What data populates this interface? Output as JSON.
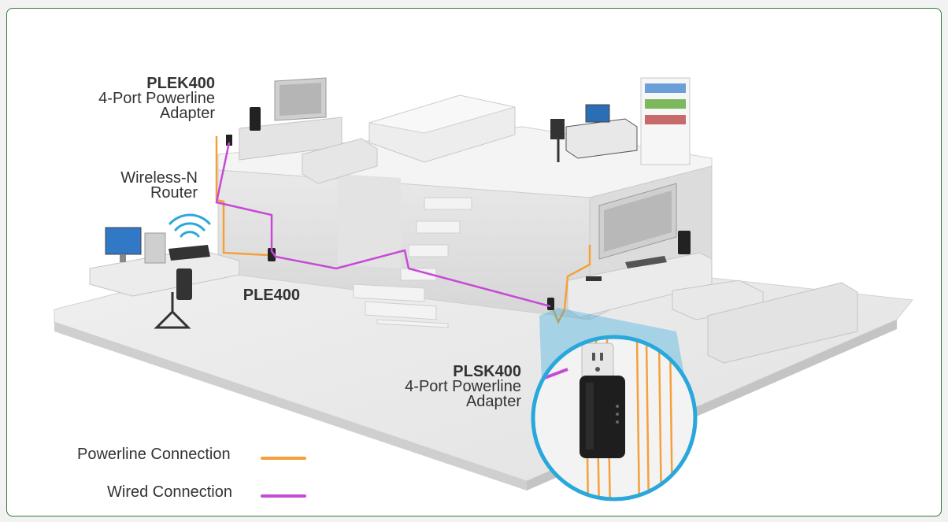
{
  "labels": {
    "plek400": {
      "model": "PLEK400",
      "line1": "4-Port Powerline",
      "line2": "Adapter"
    },
    "router": {
      "line1": "Wireless-N",
      "line2": "Router"
    },
    "ple400": {
      "model": "PLE400"
    },
    "plsk400": {
      "model": "PLSK400",
      "line1": "4-Port Powerline",
      "line2": "Adapter"
    }
  },
  "legend": {
    "powerline": {
      "label": "Powerline Connection",
      "color": "#f5a03a"
    },
    "wired": {
      "label": "Wired Connection",
      "color": "#c64ad6"
    }
  },
  "colors": {
    "powerline": "#f5a03a",
    "wired": "#c64ad6",
    "zoom_ring": "#29a8dc",
    "wifi": "#29a8dc"
  }
}
